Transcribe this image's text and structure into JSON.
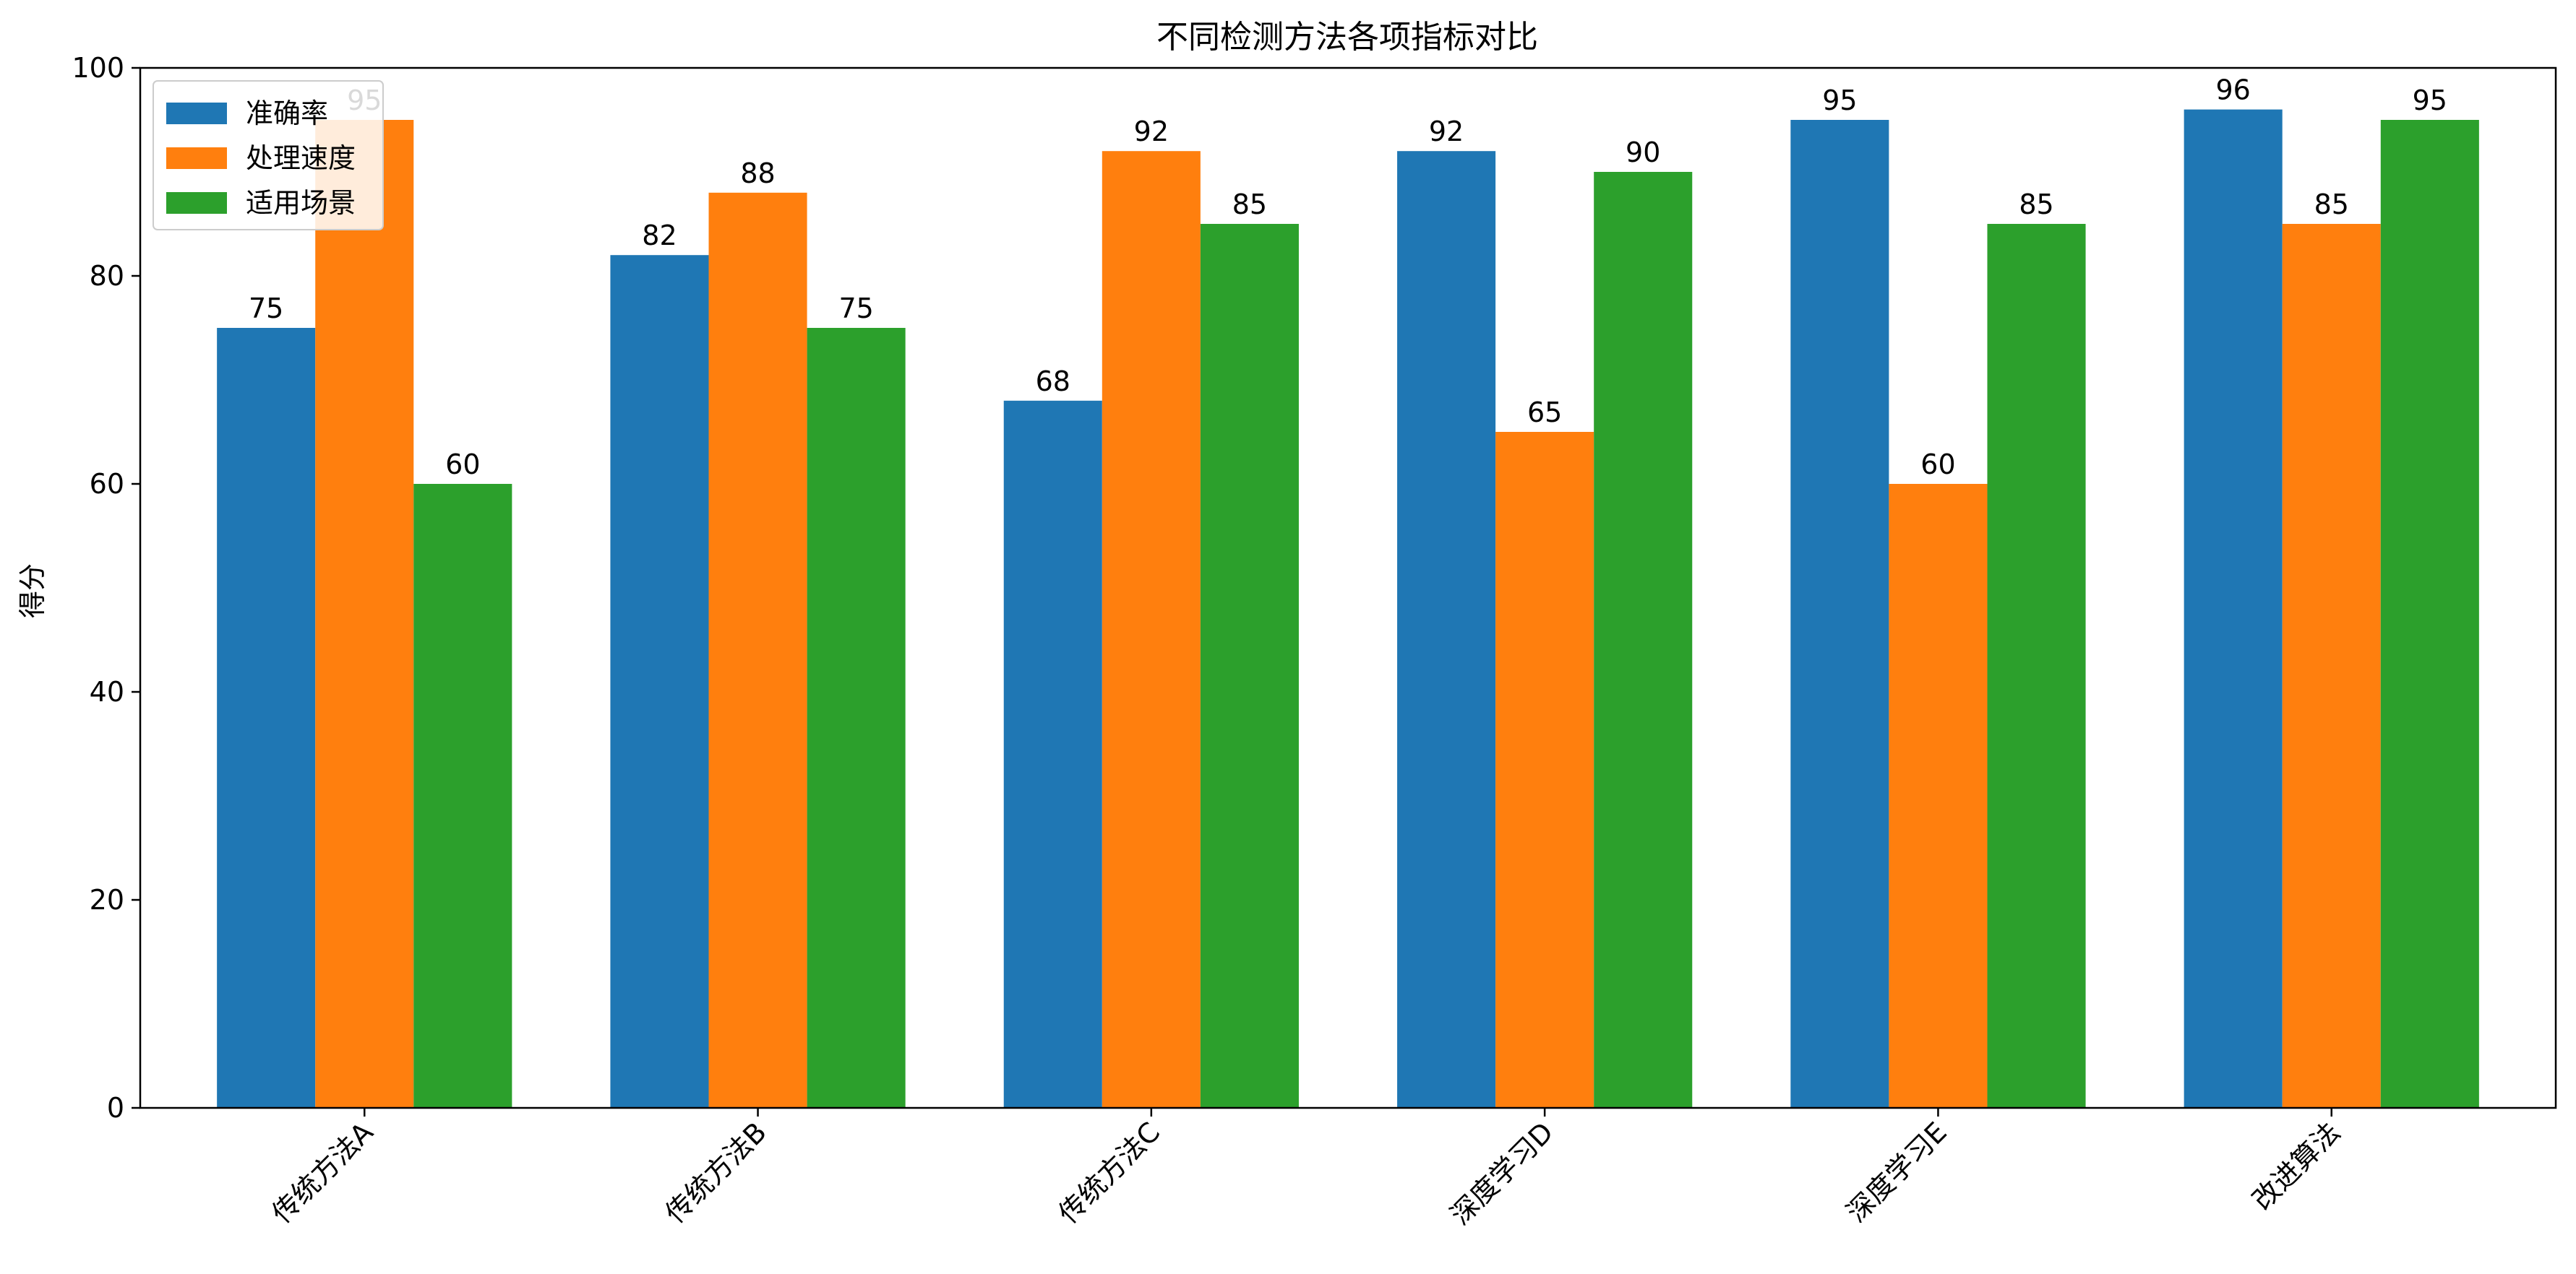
{
  "chart_data": {
    "type": "bar",
    "title": "不同检测方法各项指标对比",
    "xlabel": "",
    "ylabel": "得分",
    "categories": [
      "传统方法A",
      "传统方法B",
      "传统方法C",
      "深度学习D",
      "深度学习E",
      "改进算法"
    ],
    "series": [
      {
        "name": "准确率",
        "color": "#1f77b4",
        "values": [
          75,
          82,
          68,
          92,
          95,
          96
        ]
      },
      {
        "name": "处理速度",
        "color": "#ff7f0e",
        "values": [
          95,
          88,
          92,
          65,
          60,
          85
        ]
      },
      {
        "name": "适用场景",
        "color": "#2ca02c",
        "values": [
          60,
          75,
          85,
          90,
          85,
          95
        ]
      }
    ],
    "ylim": [
      0,
      100
    ],
    "yticks": [
      0,
      20,
      40,
      60,
      80,
      100
    ],
    "grid": false,
    "legend_position": "top-left",
    "data_labels": true
  }
}
